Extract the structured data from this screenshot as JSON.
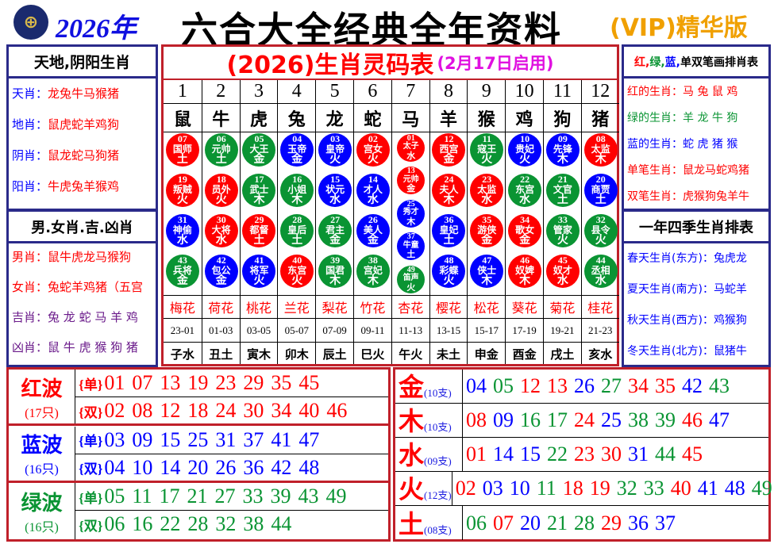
{
  "header": {
    "logo": "HK-jockey-logo",
    "year": "2026年",
    "title": "六合大全经典全年资料",
    "vip": "(VIP)精华版"
  },
  "colors": {
    "r": "#ff0000",
    "g": "#0a9433",
    "b": "#0000ff",
    "navy": "#2a2a8a",
    "purple": "#6a1a8a"
  },
  "left": {
    "box1_title": "天地,阴阳生肖",
    "box1_items": [
      {
        "k": "天肖",
        "v": "龙兔牛马猴猪"
      },
      {
        "k": "地肖",
        "v": "鼠虎蛇羊鸡狗"
      },
      {
        "k": "阴肖",
        "v": "鼠龙蛇马狗猪"
      },
      {
        "k": "阳肖",
        "v": "牛虎兔羊猴鸡"
      }
    ],
    "box2_title": "男.女肖.吉.凶肖",
    "box2_items": [
      {
        "k": "男肖",
        "v": "鼠牛虎龙马猴狗",
        "c": "r"
      },
      {
        "k": "女肖",
        "v": "兔蛇羊鸡猪（五宫",
        "c": "r"
      },
      {
        "k": "吉肖",
        "v": "兔 龙 蛇 马 羊 鸡",
        "c": "purple"
      },
      {
        "k": "凶肖",
        "v": "鼠 牛 虎 猴 狗 猪",
        "c": "purple"
      }
    ]
  },
  "center": {
    "title": "(2026)生肖灵码表",
    "subtitle": "(2月17日启用)",
    "columns": [
      {
        "n": "1",
        "z": "鼠",
        "f": "梅花",
        "h": "23-01",
        "br": "子水",
        "balls": [
          [
            "07",
            "国师",
            "土",
            "r"
          ],
          [
            "19",
            "叛贼",
            "火",
            "r"
          ],
          [
            "31",
            "神偷",
            "水",
            "b"
          ],
          [
            "43",
            "兵将",
            "金",
            "g"
          ]
        ]
      },
      {
        "n": "2",
        "z": "牛",
        "f": "荷花",
        "h": "01-03",
        "br": "丑土",
        "balls": [
          [
            "06",
            "元帅",
            "土",
            "g"
          ],
          [
            "18",
            "员外",
            "火",
            "r"
          ],
          [
            "30",
            "大将",
            "水",
            "r"
          ],
          [
            "42",
            "包公",
            "金",
            "b"
          ]
        ]
      },
      {
        "n": "3",
        "z": "虎",
        "f": "桃花",
        "h": "03-05",
        "br": "寅木",
        "balls": [
          [
            "05",
            "大王",
            "金",
            "g"
          ],
          [
            "17",
            "武士",
            "木",
            "g"
          ],
          [
            "29",
            "都督",
            "土",
            "r"
          ],
          [
            "41",
            "将军",
            "火",
            "b"
          ]
        ]
      },
      {
        "n": "4",
        "z": "兔",
        "f": "兰花",
        "h": "05-07",
        "br": "卯木",
        "balls": [
          [
            "04",
            "玉帝",
            "金",
            "b"
          ],
          [
            "16",
            "小姐",
            "木",
            "g"
          ],
          [
            "28",
            "皇后",
            "土",
            "g"
          ],
          [
            "40",
            "东宫",
            "火",
            "r"
          ]
        ]
      },
      {
        "n": "5",
        "z": "龙",
        "f": "梨花",
        "h": "07-09",
        "br": "辰土",
        "balls": [
          [
            "03",
            "皇帝",
            "火",
            "b"
          ],
          [
            "15",
            "状元",
            "水",
            "b"
          ],
          [
            "27",
            "君主",
            "金",
            "g"
          ],
          [
            "39",
            "国君",
            "木",
            "g"
          ]
        ]
      },
      {
        "n": "6",
        "z": "蛇",
        "f": "竹花",
        "h": "09-11",
        "br": "巳火",
        "balls": [
          [
            "02",
            "宫女",
            "火",
            "r"
          ],
          [
            "14",
            "才人",
            "水",
            "b"
          ],
          [
            "26",
            "美人",
            "金",
            "b"
          ],
          [
            "38",
            "宫妃",
            "木",
            "g"
          ]
        ]
      },
      {
        "n": "7",
        "z": "马",
        "f": "杏花",
        "h": "11-13",
        "br": "午火",
        "balls": [
          [
            "01",
            "太子",
            "水",
            "r"
          ],
          [
            "13",
            "元帅",
            "金",
            "r"
          ],
          [
            "25",
            "秀才",
            "木",
            "b"
          ],
          [
            "37",
            "牛童",
            "土",
            "b"
          ],
          [
            "49",
            "笛声",
            "火",
            "g"
          ]
        ]
      },
      {
        "n": "8",
        "z": "羊",
        "f": "樱花",
        "h": "13-15",
        "br": "未土",
        "balls": [
          [
            "12",
            "西宫",
            "金",
            "r"
          ],
          [
            "24",
            "夫人",
            "木",
            "r"
          ],
          [
            "36",
            "皇妃",
            "土",
            "b"
          ],
          [
            "48",
            "彩蝶",
            "火",
            "b"
          ]
        ]
      },
      {
        "n": "9",
        "z": "猴",
        "f": "松花",
        "h": "15-17",
        "br": "申金",
        "balls": [
          [
            "11",
            "寇王",
            "火",
            "g"
          ],
          [
            "23",
            "太监",
            "水",
            "r"
          ],
          [
            "35",
            "游侠",
            "金",
            "r"
          ],
          [
            "47",
            "侠士",
            "木",
            "b"
          ]
        ]
      },
      {
        "n": "10",
        "z": "鸡",
        "f": "葵花",
        "h": "17-19",
        "br": "酉金",
        "balls": [
          [
            "10",
            "贵妃",
            "火",
            "b"
          ],
          [
            "22",
            "东宫",
            "水",
            "g"
          ],
          [
            "34",
            "歌女",
            "金",
            "r"
          ],
          [
            "46",
            "奴婢",
            "木",
            "r"
          ]
        ]
      },
      {
        "n": "11",
        "z": "狗",
        "f": "菊花",
        "h": "19-21",
        "br": "戌土",
        "balls": [
          [
            "09",
            "先锋",
            "木",
            "b"
          ],
          [
            "21",
            "文官",
            "土",
            "g"
          ],
          [
            "33",
            "管家",
            "火",
            "g"
          ],
          [
            "45",
            "奴才",
            "水",
            "r"
          ]
        ]
      },
      {
        "n": "12",
        "z": "猪",
        "f": "桂花",
        "h": "21-23",
        "br": "亥水",
        "balls": [
          [
            "08",
            "太监",
            "木",
            "r"
          ],
          [
            "20",
            "商贾",
            "土",
            "b"
          ],
          [
            "32",
            "县令",
            "火",
            "g"
          ],
          [
            "44",
            "丞相",
            "水",
            "g"
          ]
        ]
      }
    ]
  },
  "right": {
    "box1_title_parts": [
      {
        "t": "红,",
        "c": "r"
      },
      {
        "t": "绿,",
        "c": "g"
      },
      {
        "t": "蓝,",
        "c": "b"
      },
      {
        "t": "单双笔画排肖表",
        "c": "k"
      }
    ],
    "box1_items": [
      {
        "k": "红的生肖",
        "v": "马 兔 鼠 鸡",
        "c": "r"
      },
      {
        "k": "绿的生肖",
        "v": "羊 龙 牛 狗",
        "c": "g"
      },
      {
        "k": "蓝的生肖",
        "v": "蛇 虎 猪 猴",
        "c": "b"
      },
      {
        "k": "单笔生肖",
        "v": "鼠龙马蛇鸡猪",
        "c": "r"
      },
      {
        "k": "双笔生肖",
        "v": "虎猴狗兔羊牛",
        "c": "r"
      }
    ],
    "box2_title": "一年四季生肖排表",
    "box2_items": [
      {
        "k": "春天生肖(东方)",
        "v": "兔虎龙"
      },
      {
        "k": "夏天生肖(南方)",
        "v": "马蛇羊"
      },
      {
        "k": "秋天生肖(西方)",
        "v": "鸡猴狗"
      },
      {
        "k": "冬天生肖(北方)",
        "v": "鼠猪牛"
      }
    ]
  },
  "waves": [
    {
      "name": "红波",
      "count": "(17只)",
      "c": "r",
      "rows": [
        {
          "tag": "{单}",
          "nums": [
            "01",
            "07",
            "13",
            "19",
            "23",
            "29",
            "35",
            "45"
          ]
        },
        {
          "tag": "{双}",
          "nums": [
            "02",
            "08",
            "12",
            "18",
            "24",
            "30",
            "34",
            "40",
            "46"
          ]
        }
      ]
    },
    {
      "name": "蓝波",
      "count": "(16只)",
      "c": "b",
      "rows": [
        {
          "tag": "{单}",
          "nums": [
            "03",
            "09",
            "15",
            "25",
            "31",
            "37",
            "41",
            "47"
          ]
        },
        {
          "tag": "{双}",
          "nums": [
            "04",
            "10",
            "14",
            "20",
            "26",
            "36",
            "42",
            "48"
          ]
        }
      ]
    },
    {
      "name": "绿波",
      "count": "(16只)",
      "c": "g",
      "rows": [
        {
          "tag": "{单}",
          "nums": [
            "05",
            "11",
            "17",
            "21",
            "27",
            "33",
            "39",
            "43",
            "49"
          ]
        },
        {
          "tag": "{双}",
          "nums": [
            "06",
            "16",
            "22",
            "28",
            "32",
            "38",
            "44"
          ]
        }
      ]
    }
  ],
  "elements": [
    {
      "name": "金",
      "count": "(10支)",
      "nums": [
        "04",
        "05",
        "12",
        "13",
        "26",
        "27",
        "34",
        "35",
        "42",
        "43"
      ]
    },
    {
      "name": "木",
      "count": "(10支)",
      "nums": [
        "08",
        "09",
        "16",
        "17",
        "24",
        "25",
        "38",
        "39",
        "46",
        "47"
      ]
    },
    {
      "name": "水",
      "count": "(09支)",
      "nums": [
        "01",
        "14",
        "15",
        "22",
        "23",
        "30",
        "31",
        "44",
        "45"
      ]
    },
    {
      "name": "火",
      "count": "(12支)",
      "nums": [
        "02",
        "03",
        "10",
        "11",
        "18",
        "19",
        "32",
        "33",
        "40",
        "41",
        "48",
        "49"
      ]
    },
    {
      "name": "土",
      "count": "(08支)",
      "nums": [
        "06",
        "07",
        "20",
        "21",
        "28",
        "29",
        "36",
        "37"
      ]
    }
  ]
}
